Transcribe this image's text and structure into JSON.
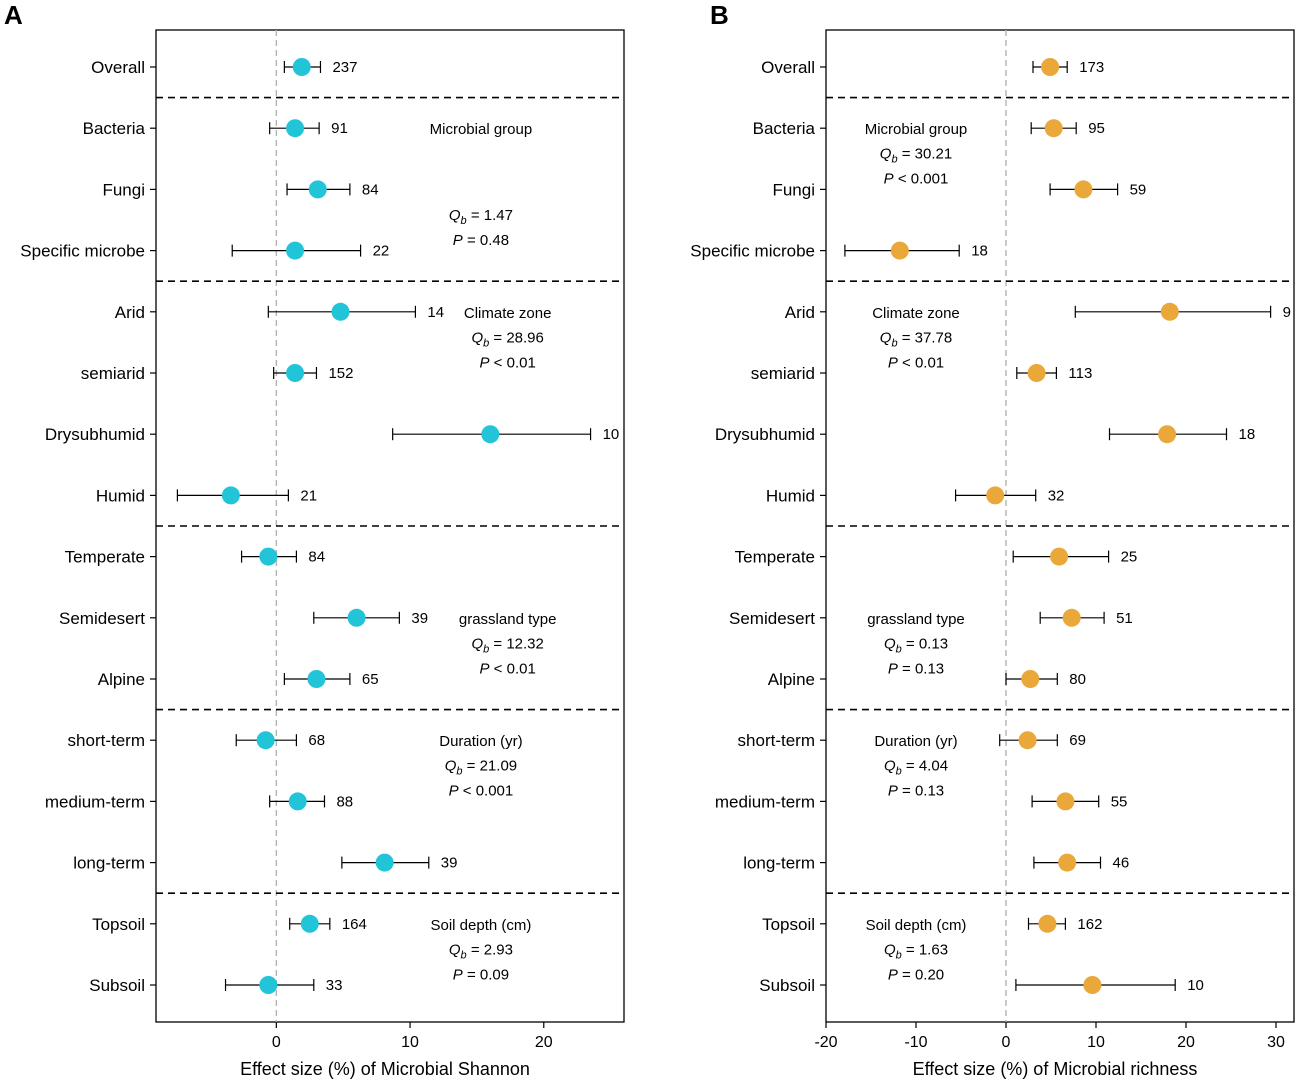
{
  "chart_data": [
    {
      "type": "forest",
      "panel": "A",
      "xlabel": "Effect size (%) of Microbial Shannon",
      "xlim": [
        -9,
        26
      ],
      "xticks": [
        0,
        10,
        20
      ],
      "reference_line": 0,
      "point_color": "#22c5d8",
      "categories": [
        "Overall",
        "Bacteria",
        "Fungi",
        "Specific microbe",
        "Arid",
        "semiarid",
        "Drysubhumid",
        "Humid",
        "Temperate",
        "Semidesert",
        "Alpine",
        "short-term",
        "medium-term",
        "long-term",
        "Topsoil",
        "Subsoil"
      ],
      "rows": [
        {
          "label": "Overall",
          "value": 1.9,
          "lo": 0.6,
          "hi": 3.3,
          "n": "237"
        },
        {
          "label": "Bacteria",
          "value": 1.4,
          "lo": -0.5,
          "hi": 3.2,
          "n": "91"
        },
        {
          "label": "Fungi",
          "value": 3.1,
          "lo": 0.8,
          "hi": 5.5,
          "n": "84"
        },
        {
          "label": "Specific microbe",
          "value": 1.4,
          "lo": -3.3,
          "hi": 6.3,
          "n": "22"
        },
        {
          "label": "Arid",
          "value": 4.8,
          "lo": -0.6,
          "hi": 10.4,
          "n": "14"
        },
        {
          "label": "semiarid",
          "value": 1.4,
          "lo": -0.2,
          "hi": 3.0,
          "n": "152"
        },
        {
          "label": "Drysubhumid",
          "value": 16.0,
          "lo": 8.7,
          "hi": 23.5,
          "n": "10"
        },
        {
          "label": "Humid",
          "value": -3.4,
          "lo": -7.4,
          "hi": 0.9,
          "n": "21"
        },
        {
          "label": "Temperate",
          "value": -0.6,
          "lo": -2.6,
          "hi": 1.5,
          "n": "84"
        },
        {
          "label": "Semidesert",
          "value": 6.0,
          "lo": 2.8,
          "hi": 9.2,
          "n": "39"
        },
        {
          "label": "Alpine",
          "value": 3.0,
          "lo": 0.6,
          "hi": 5.5,
          "n": "65"
        },
        {
          "label": "short-term",
          "value": -0.8,
          "lo": -3.0,
          "hi": 1.5,
          "n": "68"
        },
        {
          "label": "medium-term",
          "value": 1.6,
          "lo": -0.5,
          "hi": 3.6,
          "n": "88"
        },
        {
          "label": "long-term",
          "value": 8.1,
          "lo": 4.9,
          "hi": 11.4,
          "n": "39"
        },
        {
          "label": "Topsoil",
          "value": 2.5,
          "lo": 1.0,
          "hi": 4.0,
          "n": "164"
        },
        {
          "label": "Subsoil",
          "value": -0.6,
          "lo": -3.8,
          "hi": 2.8,
          "n": "33"
        }
      ],
      "group_separators_after": [
        0,
        3,
        7,
        10,
        13
      ],
      "annotations": [
        {
          "title": "Microbial group",
          "qb": "1.47",
          "p": "= 0.48",
          "x": 15.3,
          "title_row": 1,
          "qb_row": 2.4
        },
        {
          "title": "Climate zone",
          "qb": "28.96",
          "p": "< 0.01",
          "x": 17.3,
          "title_row": 4,
          "qb_row": 4.4
        },
        {
          "title": "grassland type",
          "qb": "12.32",
          "p": "< 0.01",
          "x": 17.3,
          "title_row": 9,
          "qb_row": 9.4
        },
        {
          "title": "Duration (yr)",
          "qb": "21.09",
          "p": "< 0.001",
          "x": 15.3,
          "title_row": 11,
          "qb_row": 11.4
        },
        {
          "title": "Soil depth (cm)",
          "qb": "2.93",
          "p": "= 0.09",
          "x": 15.3,
          "title_row": 14,
          "qb_row": 14.4
        }
      ]
    },
    {
      "type": "forest",
      "panel": "B",
      "xlabel": "Effect size (%) of Microbial richness",
      "xlim": [
        -20,
        32
      ],
      "xticks": [
        -20,
        -10,
        0,
        10,
        20,
        30
      ],
      "reference_line": 0,
      "point_color": "#eba83a",
      "categories": [
        "Overall",
        "Bacteria",
        "Fungi",
        "Specific microbe",
        "Arid",
        "semiarid",
        "Drysubhumid",
        "Humid",
        "Temperate",
        "Semidesert",
        "Alpine",
        "short-term",
        "medium-term",
        "long-term",
        "Topsoil",
        "Subsoil"
      ],
      "rows": [
        {
          "label": "Overall",
          "value": 4.9,
          "lo": 3.0,
          "hi": 6.8,
          "n": "173"
        },
        {
          "label": "Bacteria",
          "value": 5.3,
          "lo": 2.8,
          "hi": 7.8,
          "n": "95"
        },
        {
          "label": "Fungi",
          "value": 8.6,
          "lo": 4.9,
          "hi": 12.4,
          "n": "59"
        },
        {
          "label": "Specific microbe",
          "value": -11.8,
          "lo": -17.9,
          "hi": -5.2,
          "n": "18"
        },
        {
          "label": "Arid",
          "value": 18.2,
          "lo": 7.7,
          "hi": 29.4,
          "n": "9"
        },
        {
          "label": "semiarid",
          "value": 3.4,
          "lo": 1.2,
          "hi": 5.6,
          "n": "113"
        },
        {
          "label": "Drysubhumid",
          "value": 17.9,
          "lo": 11.5,
          "hi": 24.5,
          "n": "18"
        },
        {
          "label": "Humid",
          "value": -1.2,
          "lo": -5.6,
          "hi": 3.3,
          "n": "32"
        },
        {
          "label": "Temperate",
          "value": 5.9,
          "lo": 0.8,
          "hi": 11.4,
          "n": "25"
        },
        {
          "label": "Semidesert",
          "value": 7.3,
          "lo": 3.8,
          "hi": 10.9,
          "n": "51"
        },
        {
          "label": "Alpine",
          "value": 2.7,
          "lo": 0.0,
          "hi": 5.7,
          "n": "80"
        },
        {
          "label": "short-term",
          "value": 2.4,
          "lo": -0.7,
          "hi": 5.7,
          "n": "69"
        },
        {
          "label": "medium-term",
          "value": 6.6,
          "lo": 2.9,
          "hi": 10.3,
          "n": "55"
        },
        {
          "label": "long-term",
          "value": 6.8,
          "lo": 3.1,
          "hi": 10.5,
          "n": "46"
        },
        {
          "label": "Topsoil",
          "value": 4.6,
          "lo": 2.5,
          "hi": 6.6,
          "n": "162"
        },
        {
          "label": "Subsoil",
          "value": 9.6,
          "lo": 1.1,
          "hi": 18.8,
          "n": "10"
        }
      ],
      "group_separators_after": [
        0,
        3,
        7,
        10,
        13
      ],
      "annotations": [
        {
          "title": "Microbial group",
          "qb": "30.21",
          "p": "< 0.001",
          "x": -10,
          "title_row": 1,
          "qb_row": 1.4
        },
        {
          "title": "Climate zone",
          "qb": "37.78",
          "p": "< 0.01",
          "x": -10,
          "title_row": 4,
          "qb_row": 4.4
        },
        {
          "title": "grassland type",
          "qb": "0.13",
          "p": "= 0.13",
          "x": -10,
          "title_row": 9,
          "qb_row": 9.4
        },
        {
          "title": "Duration (yr)",
          "qb": "4.04",
          "p": "= 0.13",
          "x": -10,
          "title_row": 11,
          "qb_row": 11.4
        },
        {
          "title": "Soil depth (cm)",
          "qb": "1.63",
          "p": "= 0.20",
          "x": -10,
          "title_row": 14,
          "qb_row": 14.4
        }
      ]
    }
  ]
}
